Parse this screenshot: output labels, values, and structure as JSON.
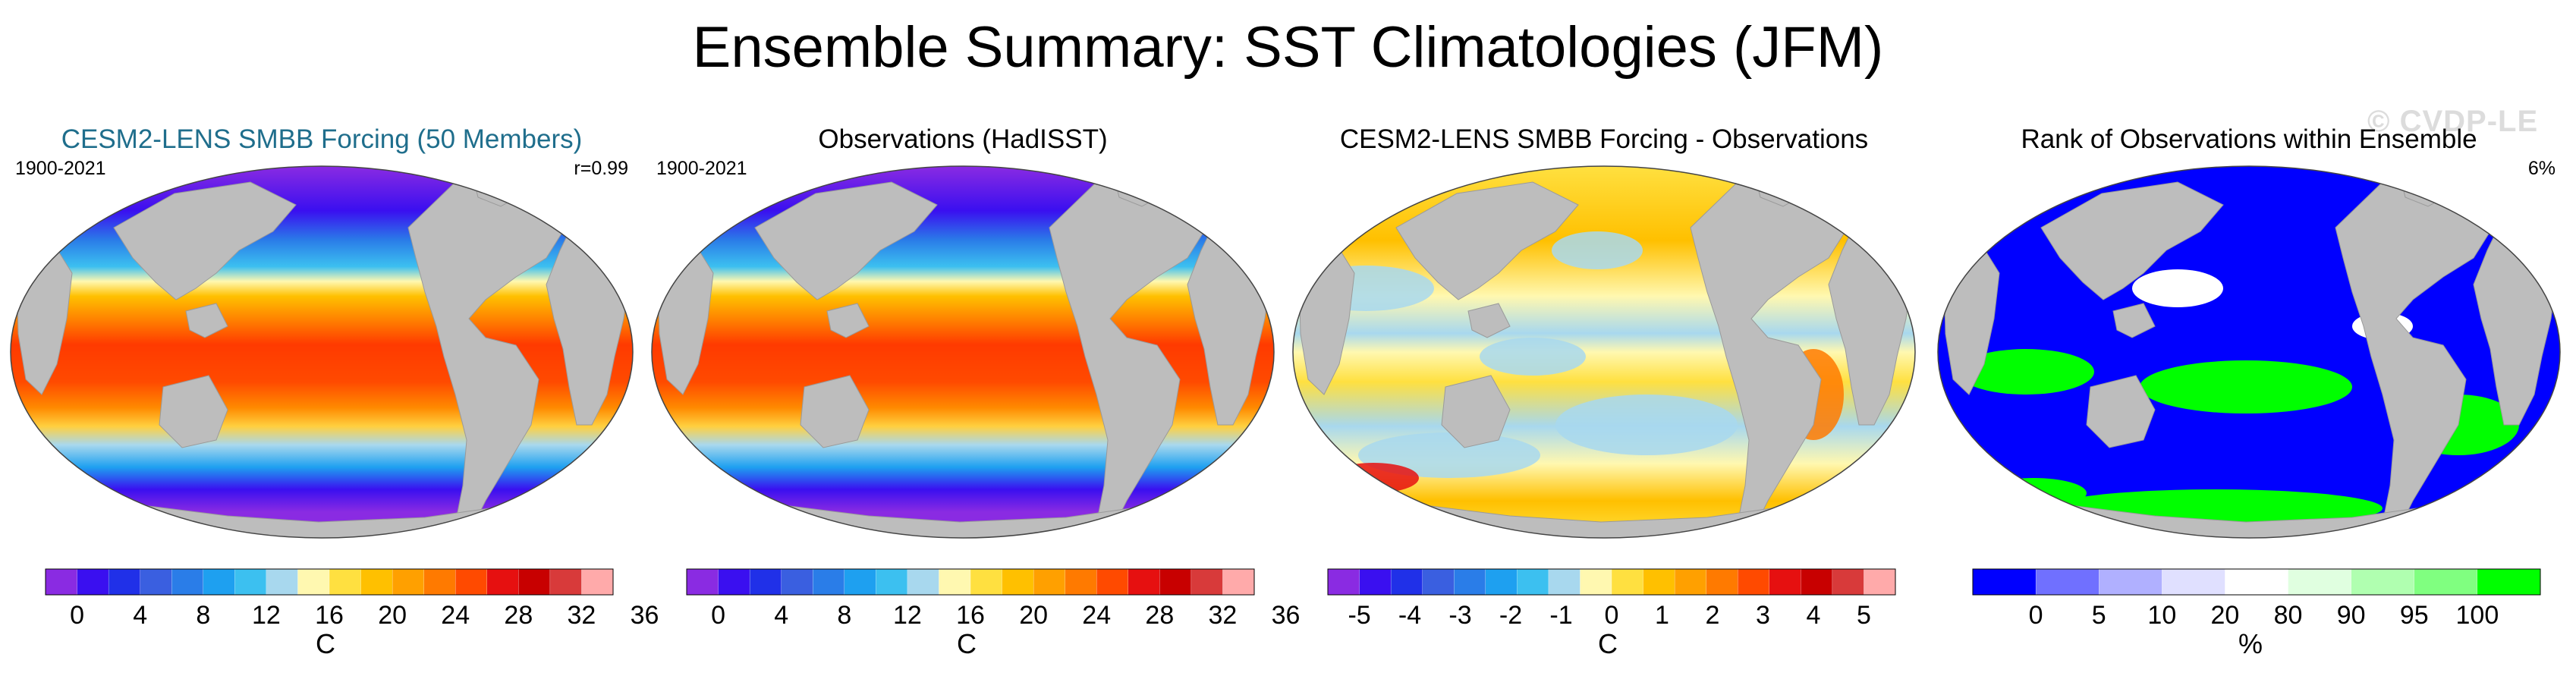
{
  "title": "Ensemble Summary: SST Climatologies (JFM)",
  "watermark": "© CVDP-LE",
  "panels": [
    {
      "title": "CESM2-LENS SMBB Forcing (50 Members)",
      "title_color": "#1f6e8c",
      "period": "1900-2021",
      "stat": "r=0.99",
      "map_kind": "sst",
      "colorbar": {
        "colors": [
          "#8a2be2",
          "#3a0ff0",
          "#2030e8",
          "#3a5fe0",
          "#2a7de8",
          "#1ea0f0",
          "#3cc0f0",
          "#a8d8ee",
          "#fff8b0",
          "#ffe040",
          "#ffc000",
          "#ffa000",
          "#ff7a00",
          "#ff4a00",
          "#e61010",
          "#c80000",
          "#d83a3a",
          "#ffaaaa"
        ],
        "labels": [
          "0",
          "4",
          "8",
          "12",
          "16",
          "20",
          "24",
          "28",
          "32",
          "36"
        ],
        "label_start_boundary": 1,
        "label_step": 2,
        "unit": "C"
      }
    },
    {
      "title": "Observations (HadISST)",
      "title_color": "#000000",
      "period": "1900-2021",
      "stat": "",
      "map_kind": "sst",
      "colorbar": {
        "colors": [
          "#8a2be2",
          "#3a0ff0",
          "#2030e8",
          "#3a5fe0",
          "#2a7de8",
          "#1ea0f0",
          "#3cc0f0",
          "#a8d8ee",
          "#fff8b0",
          "#ffe040",
          "#ffc000",
          "#ffa000",
          "#ff7a00",
          "#ff4a00",
          "#e61010",
          "#c80000",
          "#d83a3a",
          "#ffaaaa"
        ],
        "labels": [
          "0",
          "4",
          "8",
          "12",
          "16",
          "20",
          "24",
          "28",
          "32",
          "36"
        ],
        "label_start_boundary": 1,
        "label_step": 2,
        "unit": "C"
      }
    },
    {
      "title": "CESM2-LENS SMBB Forcing - Observations",
      "title_color": "#000000",
      "period": "",
      "stat": "",
      "map_kind": "diff",
      "colorbar": {
        "colors": [
          "#8a2be2",
          "#3a0ff0",
          "#2030e8",
          "#3a5fe0",
          "#2a7de8",
          "#1ea0f0",
          "#3cc0f0",
          "#a8d8ee",
          "#fff8b0",
          "#ffe040",
          "#ffc000",
          "#ffa000",
          "#ff7a00",
          "#ff4a00",
          "#e61010",
          "#c80000",
          "#d83a3a",
          "#ffaaaa"
        ],
        "labels": [
          "-5",
          "-4",
          "-3",
          "-2",
          "-1",
          "0",
          "1",
          "2",
          "3",
          "4",
          "5"
        ],
        "label_start_boundary": 1,
        "label_step": 1.6,
        "unit": "C"
      }
    },
    {
      "title": "Rank of Observations within Ensemble",
      "title_color": "#000000",
      "period": "",
      "stat": "6%",
      "map_kind": "rank",
      "colorbar": {
        "colors": [
          "#0000ff",
          "#7070ff",
          "#b0b0ff",
          "#e0e0ff",
          "#ffffff",
          "#e0ffe0",
          "#b0ffb0",
          "#80ff80",
          "#00ff00"
        ],
        "labels": [
          "0",
          "5",
          "10",
          "20",
          "80",
          "90",
          "95",
          "100"
        ],
        "label_start_boundary": 1,
        "label_step": 1,
        "unit": "%"
      }
    }
  ]
}
